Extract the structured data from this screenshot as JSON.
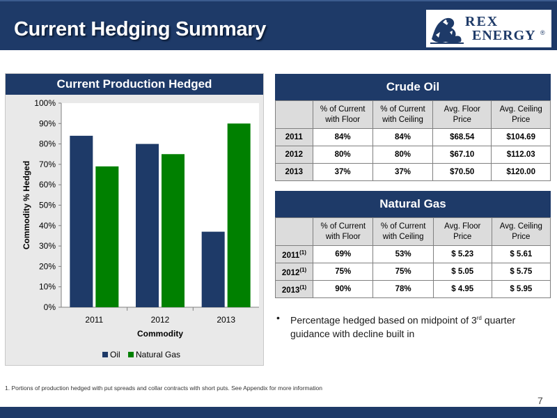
{
  "header": {
    "title": "Current Hedging Summary",
    "logo_line1": "REX",
    "logo_line2": "ENERGY",
    "logo_reg": "®"
  },
  "chart_panel": {
    "title": "Current Production Hedged"
  },
  "chart_data": {
    "type": "bar",
    "categories": [
      "2011",
      "2012",
      "2013"
    ],
    "series": [
      {
        "name": "Oil",
        "values": [
          84,
          80,
          37
        ],
        "color": "#1e3a68"
      },
      {
        "name": "Natural Gas",
        "values": [
          69,
          75,
          90
        ],
        "color": "#008000"
      }
    ],
    "xlabel": "Commodity",
    "ylabel": "Commodity % Hedged",
    "ylim": [
      0,
      100
    ],
    "yticks": [
      "0%",
      "10%",
      "20%",
      "30%",
      "40%",
      "50%",
      "60%",
      "70%",
      "80%",
      "90%",
      "100%"
    ],
    "grid": false,
    "legend": "bottom"
  },
  "crude_oil": {
    "title": "Crude Oil",
    "columns": [
      "",
      "% of Current with Floor",
      "% of Current with Ceiling",
      "Avg. Floor Price",
      "Avg. Ceiling Price"
    ],
    "rows": [
      {
        "year": "2011",
        "note": "",
        "floor_pct": "84%",
        "ceiling_pct": "84%",
        "floor_price": "$68.54",
        "ceiling_price": "$104.69"
      },
      {
        "year": "2012",
        "note": "",
        "floor_pct": "80%",
        "ceiling_pct": "80%",
        "floor_price": "$67.10",
        "ceiling_price": "$112.03"
      },
      {
        "year": "2013",
        "note": "",
        "floor_pct": "37%",
        "ceiling_pct": "37%",
        "floor_price": "$70.50",
        "ceiling_price": "$120.00"
      }
    ]
  },
  "natural_gas": {
    "title": "Natural Gas",
    "columns": [
      "",
      "% of Current with Floor",
      "% of Current with Ceiling",
      "Avg. Floor Price",
      "Avg. Ceiling Price"
    ],
    "rows": [
      {
        "year": "2011",
        "note": "(1)",
        "floor_pct": "69%",
        "ceiling_pct": "53%",
        "floor_price": "$ 5.23",
        "ceiling_price": "$ 5.61"
      },
      {
        "year": "2012",
        "note": "(1)",
        "floor_pct": "75%",
        "ceiling_pct": "75%",
        "floor_price": "$ 5.05",
        "ceiling_price": "$ 5.75"
      },
      {
        "year": "2013",
        "note": "(1)",
        "floor_pct": "90%",
        "ceiling_pct": "78%",
        "floor_price": "$ 4.95",
        "ceiling_price": "$ 5.95"
      }
    ]
  },
  "bullet": {
    "marker": "•",
    "text_before": "Percentage hedged based on midpoint of 3",
    "text_sup": "rd",
    "text_after": " quarter guidance with decline built in"
  },
  "footnote": "1. Portions of production hedged with put spreads and collar contracts with short puts.  See Appendix for more information",
  "page_number": "7"
}
